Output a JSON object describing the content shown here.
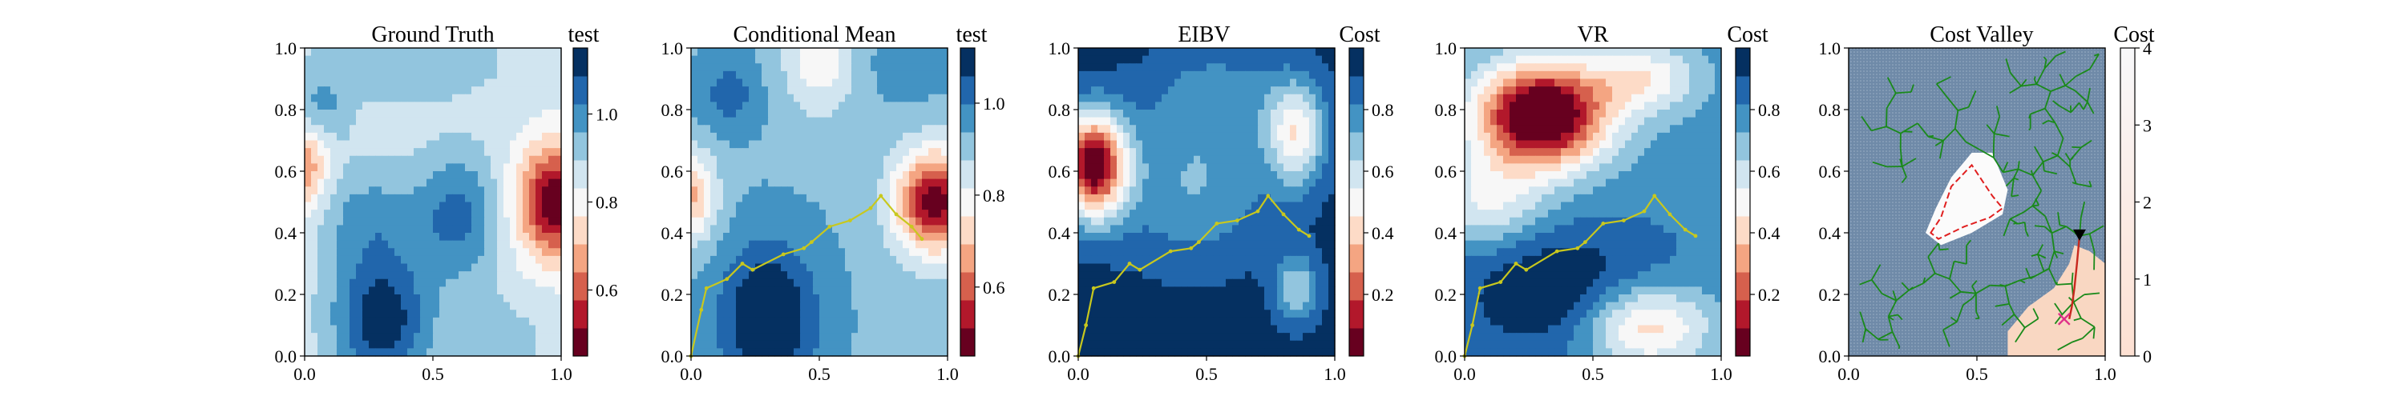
{
  "figure": {
    "panels": [
      {
        "title": "Ground Truth",
        "cbar_label": "test"
      },
      {
        "title": "Conditional Mean",
        "cbar_label": "test"
      },
      {
        "title": "EIBV",
        "cbar_label": "Cost"
      },
      {
        "title": "VR",
        "cbar_label": "Cost"
      },
      {
        "title": "Cost Valley",
        "cbar_label": "Cost"
      }
    ]
  },
  "chart_data": [
    {
      "type": "heatmap",
      "title": "Ground Truth",
      "xlim": [
        0,
        1
      ],
      "ylim": [
        0,
        1
      ],
      "x_ticks": [
        "0.0",
        "0.5",
        "1.0"
      ],
      "y_ticks": [
        "0.0",
        "0.2",
        "0.4",
        "0.6",
        "0.8",
        "1.0"
      ],
      "colorbar": {
        "label": "test",
        "range": [
          0.45,
          1.15
        ],
        "ticks": [
          "0.6",
          "0.8",
          "1.0"
        ],
        "tick_values": [
          0.6,
          0.8,
          1.0
        ],
        "colormap": "RdBu"
      },
      "field": {
        "base": 0.86,
        "bumps": [
          {
            "x": 0.98,
            "y": 0.5,
            "sx": 0.11,
            "sy": 0.13,
            "a": -0.4
          },
          {
            "x": 0.0,
            "y": 0.62,
            "sx": 0.06,
            "sy": 0.1,
            "a": -0.22
          },
          {
            "x": 0.3,
            "y": 0.12,
            "sx": 0.13,
            "sy": 0.15,
            "a": 0.28
          },
          {
            "x": 0.05,
            "y": 0.8,
            "sx": 0.09,
            "sy": 0.08,
            "a": 0.12
          },
          {
            "x": 0.4,
            "y": 0.95,
            "sx": 0.25,
            "sy": 0.08,
            "a": 0.1
          },
          {
            "x": 0.6,
            "y": 0.45,
            "sx": 0.12,
            "sy": 0.15,
            "a": 0.18
          },
          {
            "x": 0.25,
            "y": 0.45,
            "sx": 0.14,
            "sy": 0.12,
            "a": 0.12
          },
          {
            "x": 0.75,
            "y": 0.05,
            "sx": 0.15,
            "sy": 0.1,
            "a": 0.06
          }
        ]
      }
    },
    {
      "type": "heatmap",
      "title": "Conditional Mean",
      "xlim": [
        0,
        1
      ],
      "ylim": [
        0,
        1
      ],
      "x_ticks": [
        "0.0",
        "0.5",
        "1.0"
      ],
      "y_ticks": [
        "0.0",
        "0.2",
        "0.4",
        "0.6",
        "0.8",
        "1.0"
      ],
      "colorbar": {
        "label": "test",
        "range": [
          0.45,
          1.12
        ],
        "ticks": [
          "0.6",
          "0.8",
          "1.0"
        ],
        "tick_values": [
          0.6,
          0.8,
          1.0
        ],
        "colormap": "RdBu"
      },
      "field": {
        "base": 0.93,
        "bumps": [
          {
            "x": 0.95,
            "y": 0.5,
            "sx": 0.11,
            "sy": 0.12,
            "a": -0.45
          },
          {
            "x": 0.0,
            "y": 0.52,
            "sx": 0.07,
            "sy": 0.1,
            "a": -0.25
          },
          {
            "x": 0.3,
            "y": 0.12,
            "sx": 0.13,
            "sy": 0.17,
            "a": 0.22
          },
          {
            "x": 0.5,
            "y": 0.95,
            "sx": 0.1,
            "sy": 0.12,
            "a": -0.15
          },
          {
            "x": 0.15,
            "y": 0.85,
            "sx": 0.08,
            "sy": 0.08,
            "a": 0.1
          },
          {
            "x": 0.85,
            "y": 0.95,
            "sx": 0.1,
            "sy": 0.08,
            "a": 0.06
          }
        ]
      },
      "path": {
        "x": [
          0.0,
          0.04,
          0.06,
          0.14,
          0.2,
          0.24,
          0.36,
          0.44,
          0.47,
          0.54,
          0.62,
          0.7,
          0.74,
          0.8,
          0.86,
          0.9
        ],
        "y": [
          0.0,
          0.15,
          0.22,
          0.25,
          0.3,
          0.28,
          0.33,
          0.35,
          0.37,
          0.42,
          0.44,
          0.48,
          0.52,
          0.46,
          0.42,
          0.38
        ],
        "color": "#c8c81e"
      }
    },
    {
      "type": "heatmap",
      "title": "EIBV",
      "xlim": [
        0,
        1
      ],
      "ylim": [
        0,
        1
      ],
      "x_ticks": [
        "0.0",
        "0.5",
        "1.0"
      ],
      "y_ticks": [
        "0.0",
        "0.2",
        "0.4",
        "0.6",
        "0.8",
        "1.0"
      ],
      "colorbar": {
        "label": "Cost",
        "range": [
          0.0,
          1.0
        ],
        "ticks": [
          "0.2",
          "0.4",
          "0.6",
          "0.8"
        ],
        "tick_values": [
          0.2,
          0.4,
          0.6,
          0.8
        ],
        "colormap": "RdBu"
      },
      "field": {
        "base": 0.95,
        "bumps": [
          {
            "x": 0.06,
            "y": 0.62,
            "sx": 0.09,
            "sy": 0.12,
            "a": -0.92
          },
          {
            "x": 0.85,
            "y": 0.72,
            "sx": 0.08,
            "sy": 0.12,
            "a": -0.45
          },
          {
            "x": 0.85,
            "y": 0.22,
            "sx": 0.06,
            "sy": 0.08,
            "a": -0.3
          },
          {
            "x": 0.45,
            "y": 0.55,
            "sx": 0.22,
            "sy": 0.18,
            "a": -0.22
          },
          {
            "x": 0.55,
            "y": 0.85,
            "sx": 0.2,
            "sy": 0.12,
            "a": -0.15
          }
        ]
      },
      "path": {
        "x": [
          0.0,
          0.03,
          0.06,
          0.14,
          0.2,
          0.24,
          0.36,
          0.44,
          0.47,
          0.54,
          0.62,
          0.7,
          0.74,
          0.8,
          0.86,
          0.9
        ],
        "y": [
          0.0,
          0.1,
          0.22,
          0.24,
          0.3,
          0.28,
          0.34,
          0.35,
          0.37,
          0.43,
          0.44,
          0.47,
          0.52,
          0.46,
          0.41,
          0.39
        ],
        "color": "#c8c81e"
      }
    },
    {
      "type": "heatmap",
      "title": "VR",
      "xlim": [
        0,
        1
      ],
      "ylim": [
        0,
        1
      ],
      "x_ticks": [
        "0.0",
        "0.5",
        "1.0"
      ],
      "y_ticks": [
        "0.0",
        "0.2",
        "0.4",
        "0.6",
        "0.8",
        "1.0"
      ],
      "colorbar": {
        "label": "Cost",
        "range": [
          0.0,
          1.0
        ],
        "ticks": [
          "0.2",
          "0.4",
          "0.6",
          "0.8"
        ],
        "tick_values": [
          0.2,
          0.4,
          0.6,
          0.8
        ],
        "colormap": "RdBu"
      },
      "field": {
        "base": 0.78,
        "bumps": [
          {
            "x": 0.3,
            "y": 0.78,
            "sx": 0.18,
            "sy": 0.12,
            "a": -0.9
          },
          {
            "x": 0.7,
            "y": 0.9,
            "sx": 0.15,
            "sy": 0.08,
            "a": -0.3
          },
          {
            "x": 0.1,
            "y": 0.5,
            "sx": 0.15,
            "sy": 0.1,
            "a": -0.25
          },
          {
            "x": 0.4,
            "y": 0.2,
            "sx": 0.3,
            "sy": 0.15,
            "a": 0.25
          },
          {
            "x": 0.7,
            "y": 0.1,
            "sx": 0.18,
            "sy": 0.1,
            "a": -0.45
          }
        ]
      },
      "path": {
        "x": [
          0.0,
          0.03,
          0.06,
          0.14,
          0.2,
          0.24,
          0.36,
          0.44,
          0.47,
          0.54,
          0.62,
          0.7,
          0.74,
          0.8,
          0.86,
          0.9
        ],
        "y": [
          0.0,
          0.1,
          0.22,
          0.24,
          0.3,
          0.28,
          0.34,
          0.35,
          0.37,
          0.43,
          0.44,
          0.47,
          0.52,
          0.46,
          0.41,
          0.39
        ],
        "color": "#c8c81e"
      }
    },
    {
      "type": "heatmap",
      "title": "Cost Valley",
      "xlim": [
        0,
        1
      ],
      "ylim": [
        0,
        1
      ],
      "x_ticks": [
        "0.0",
        "0.5",
        "1.0"
      ],
      "y_ticks": [
        "0.0",
        "0.2",
        "0.4",
        "0.6",
        "0.8",
        "1.0"
      ],
      "colorbar": {
        "label": "Cost",
        "range": [
          0,
          4
        ],
        "ticks": [
          "0",
          "1",
          "2",
          "3",
          "4"
        ],
        "tick_values": [
          0,
          1,
          2,
          3,
          4
        ],
        "colormap": "cost"
      },
      "obstacle": {
        "x": [
          0.32,
          0.36,
          0.4,
          0.48,
          0.56,
          0.6,
          0.55,
          0.45,
          0.35,
          0.32
        ],
        "y": [
          0.4,
          0.45,
          0.55,
          0.62,
          0.52,
          0.48,
          0.45,
          0.42,
          0.38,
          0.4
        ],
        "color": "#e02020"
      },
      "path": {
        "x": [
          0.9,
          0.89,
          0.88,
          0.87,
          0.86
        ],
        "y": [
          0.39,
          0.3,
          0.22,
          0.16,
          0.12
        ],
        "color": "#c8281e"
      },
      "start_marker": {
        "x": 0.9,
        "y": 0.39
      },
      "end_marker": {
        "x": 0.84,
        "y": 0.12
      },
      "tree_color": "#1a8a1a"
    }
  ]
}
